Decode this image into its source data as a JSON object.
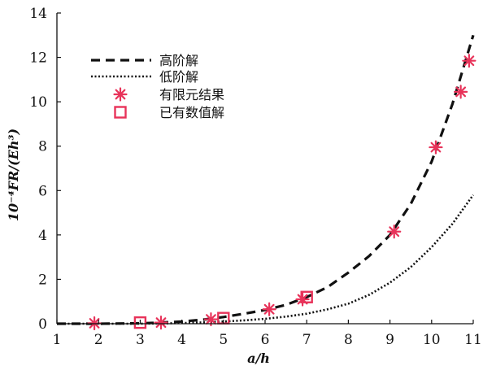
{
  "chart_data": {
    "type": "line",
    "xlabel": "a/h",
    "ylabel": "10⁻⁴FR/(Eh³)",
    "xlim": [
      1,
      11
    ],
    "ylim": [
      0,
      14
    ],
    "xticks": [
      "1",
      "2",
      "3",
      "4",
      "5",
      "6",
      "7",
      "8",
      "9",
      "10",
      "11"
    ],
    "yticks": [
      "0",
      "2",
      "4",
      "6",
      "8",
      "10",
      "12",
      "14"
    ],
    "grid": false,
    "legend_position": "top-left",
    "series": [
      {
        "name": "高阶解",
        "style": "dashed",
        "color": "#111111",
        "x": [
          1,
          2,
          3,
          3.5,
          4,
          4.5,
          5,
          5.5,
          6,
          6.5,
          7,
          7.5,
          8,
          8.5,
          9,
          9.5,
          10,
          10.5,
          11
        ],
        "y": [
          0,
          0,
          0.02,
          0.05,
          0.1,
          0.18,
          0.3,
          0.45,
          0.62,
          0.85,
          1.2,
          1.65,
          2.3,
          3.05,
          4.0,
          5.4,
          7.3,
          9.9,
          13.0
        ]
      },
      {
        "name": "低阶解",
        "style": "dotted",
        "color": "#111111",
        "x": [
          1,
          2,
          3,
          3.5,
          4,
          4.5,
          5,
          5.5,
          6,
          6.5,
          7,
          7.5,
          8,
          8.5,
          9,
          9.5,
          10,
          10.5,
          11
        ],
        "y": [
          0,
          0,
          0,
          0.01,
          0.03,
          0.06,
          0.1,
          0.15,
          0.22,
          0.32,
          0.45,
          0.65,
          0.9,
          1.3,
          1.85,
          2.55,
          3.45,
          4.5,
          5.8
        ]
      },
      {
        "name": "有限元结果",
        "style": "asterisk",
        "color": "#e8335a",
        "x": [
          1.9,
          3.5,
          4.7,
          6.1,
          6.9,
          9.1,
          10.1,
          10.7,
          10.9
        ],
        "y": [
          0.02,
          0.05,
          0.2,
          0.65,
          1.1,
          4.15,
          7.95,
          10.45,
          11.85
        ]
      },
      {
        "name": "已有数值解",
        "style": "square",
        "color": "#e8335a",
        "x": [
          3.0,
          5.0,
          7.0
        ],
        "y": [
          0.05,
          0.25,
          1.2
        ]
      }
    ]
  }
}
